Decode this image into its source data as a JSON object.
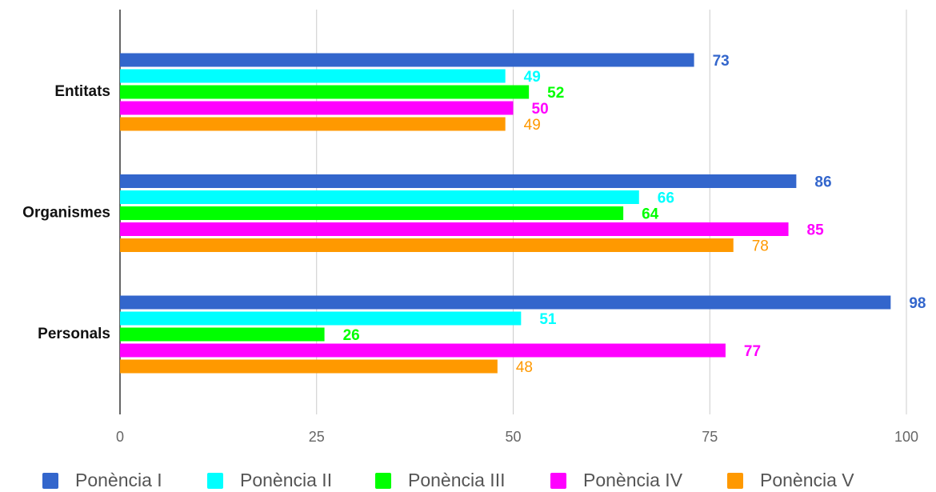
{
  "chart_data": {
    "type": "hbar",
    "categories": [
      "Entitats",
      "Organismes",
      "Personals"
    ],
    "series": [
      {
        "name": "Ponència I",
        "color": "#3366cc",
        "values": [
          73,
          86,
          98
        ]
      },
      {
        "name": "Ponència II",
        "color": "#00ffff",
        "values": [
          49,
          66,
          51
        ]
      },
      {
        "name": "Ponència III",
        "color": "#00ff00",
        "values": [
          52,
          64,
          26
        ]
      },
      {
        "name": "Ponència IV",
        "color": "#ff00ff",
        "values": [
          50,
          85,
          77
        ]
      },
      {
        "name": "Ponència V",
        "color": "#ff9900",
        "values": [
          49,
          78,
          48
        ]
      }
    ],
    "xlim": [
      0,
      100
    ],
    "xticks": [
      0,
      25,
      50,
      75,
      100
    ],
    "grid": true,
    "legend": "bottom"
  }
}
